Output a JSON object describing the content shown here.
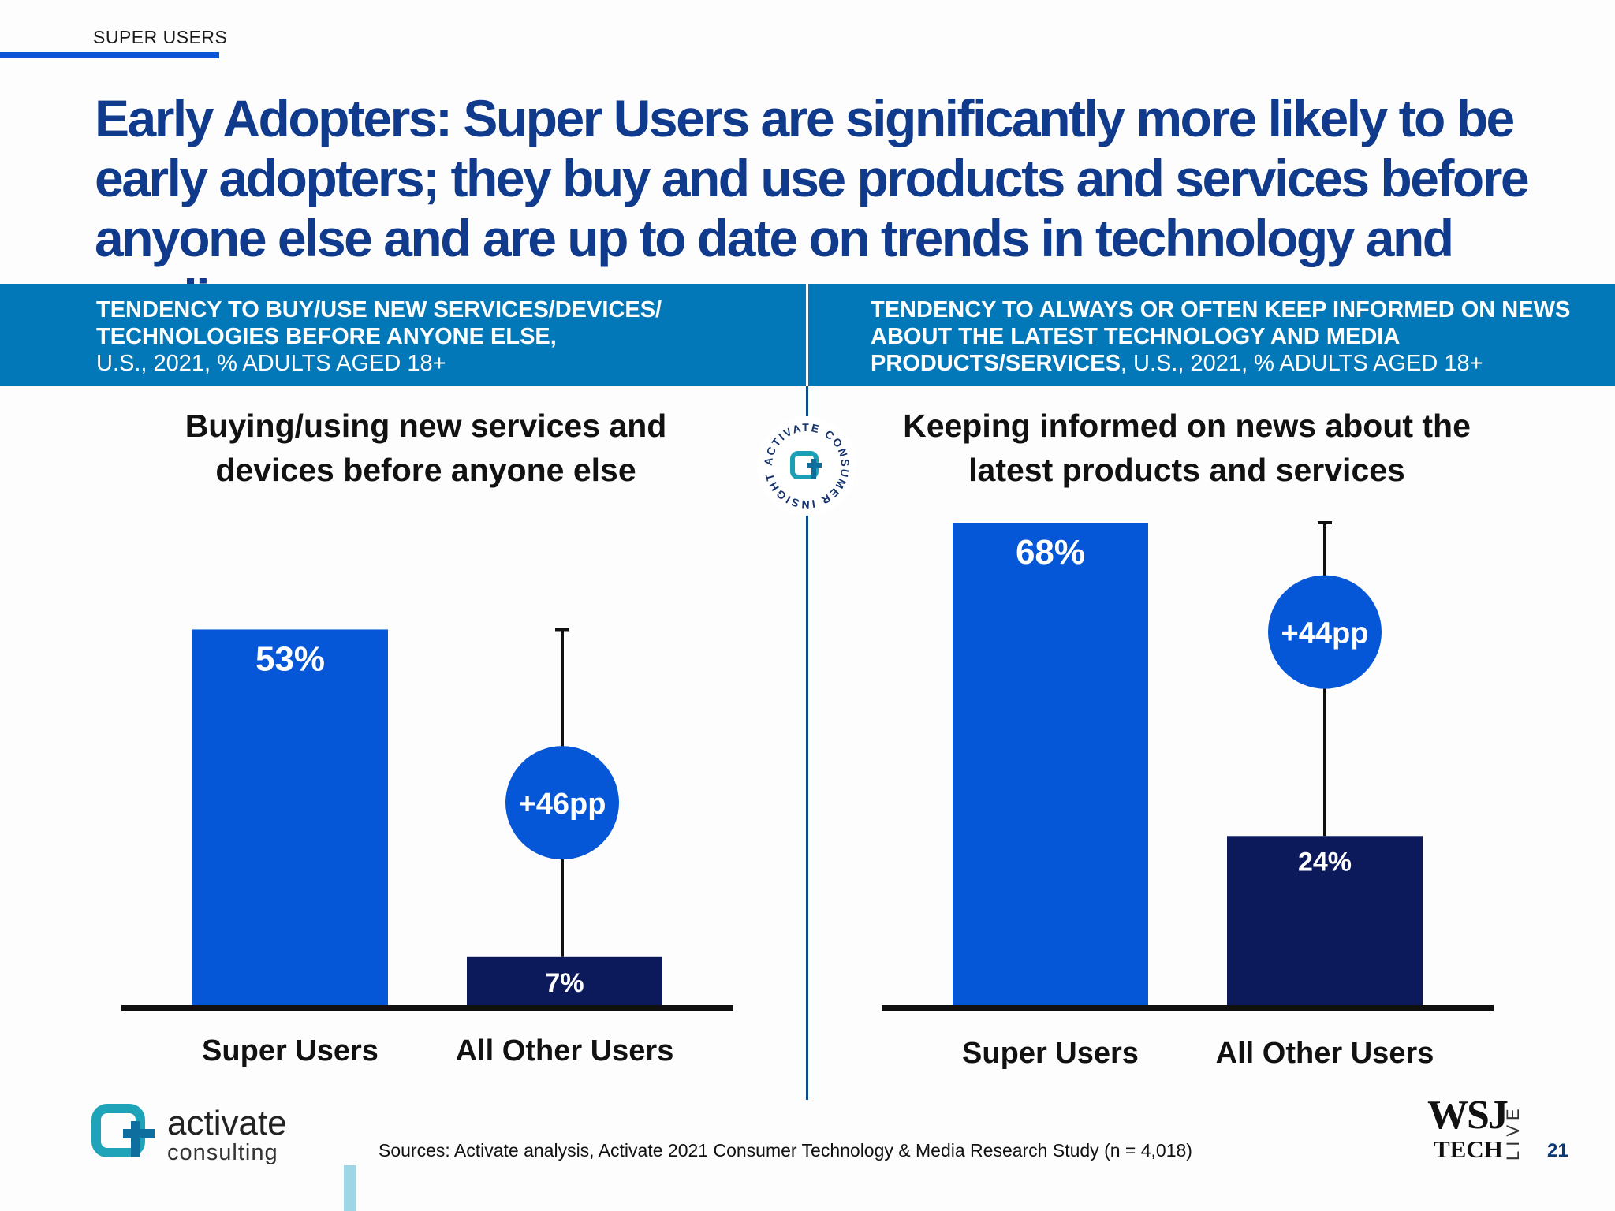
{
  "section_tag": "SUPER USERS",
  "headline": "Early Adopters: Super Users are significantly more likely to be early adopters; they buy and use products and services before anyone else and are up to date on trends in technology and media",
  "band_left": {
    "bold": "TENDENCY TO BUY/USE NEW SERVICES/DEVICES/ TECHNOLOGIES BEFORE ANYONE ELSE,",
    "regular": "U.S., 2021, % ADULTS AGED 18+"
  },
  "band_right": {
    "bold": "TENDENCY TO ALWAYS OR OFTEN KEEP INFORMED ON NEWS ABOUT THE LATEST TECHNOLOGY AND MEDIA PRODUCTS/SERVICES",
    "regular": ", U.S., 2021, % ADULTS AGED 18+"
  },
  "seal": {
    "ring_text": "ACTIVATE CONSUMER INSIGHT"
  },
  "chart_data": [
    {
      "type": "bar",
      "title": "Buying/using new services and devices before anyone else",
      "categories": [
        "Super Users",
        "All Other Users"
      ],
      "values": [
        53,
        7
      ],
      "value_labels": [
        "53%",
        "7%"
      ],
      "difference_label": "+46pp",
      "ylim": [
        0,
        68
      ],
      "grid": false,
      "colors": [
        "#0656d8",
        "#0c1a5c"
      ]
    },
    {
      "type": "bar",
      "title": "Keeping informed on news about the latest products and services",
      "categories": [
        "Super Users",
        "All Other Users"
      ],
      "values": [
        68,
        24
      ],
      "value_labels": [
        "68%",
        "24%"
      ],
      "difference_label": "+44pp",
      "ylim": [
        0,
        68
      ],
      "grid": false,
      "colors": [
        "#0656d8",
        "#0c1a5c"
      ]
    }
  ],
  "footer": {
    "logo_word1": "activate",
    "logo_word2": "consulting",
    "sources": "Sources: Activate analysis, Activate 2021 Consumer Technology & Media Research Study (n = 4,018)",
    "wsj": "WSJ",
    "wsj_tech": "TECH",
    "wsj_live": "LIVE",
    "page_number": "21"
  },
  "colors": {
    "headline": "#103a8c",
    "band": "#0378b9",
    "accent": "#0a55d6",
    "circle": "#0656d8"
  }
}
